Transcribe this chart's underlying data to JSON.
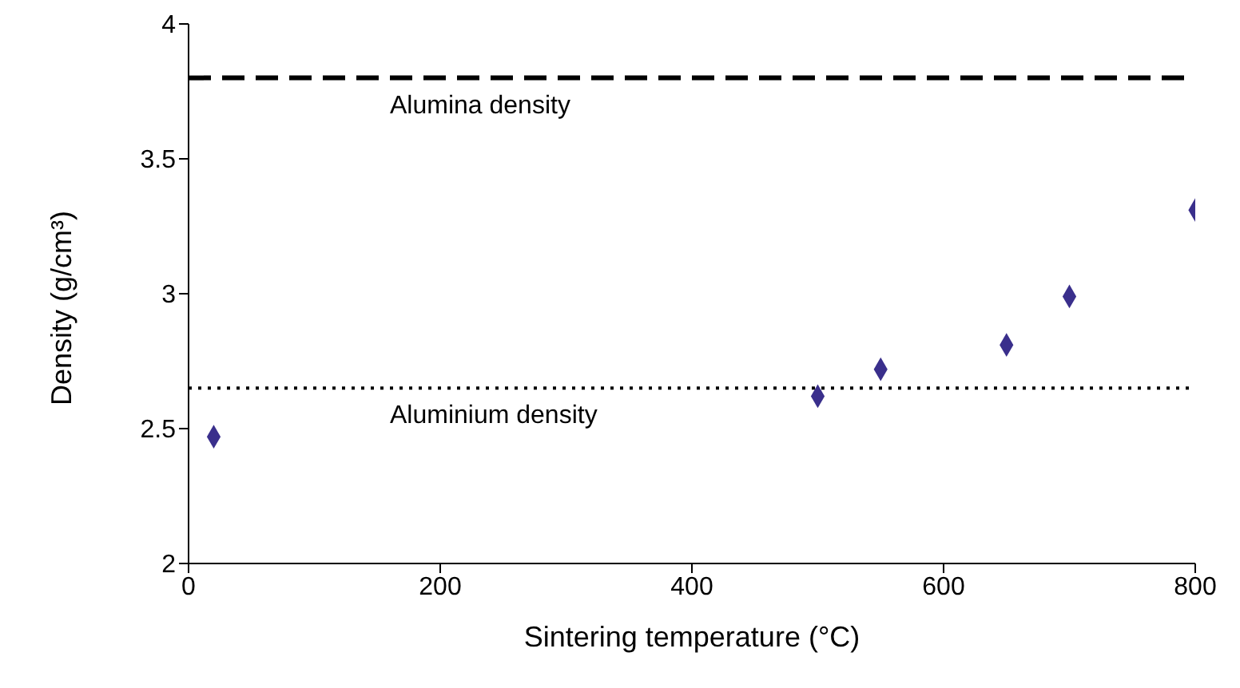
{
  "chart_data": {
    "type": "scatter",
    "xlabel": "Sintering temperature (°C)",
    "ylabel": "Density (g/cm³)",
    "x": [
      20,
      500,
      550,
      650,
      700,
      800
    ],
    "series": [
      {
        "color": "#3a2f8c",
        "values": [
          2.47,
          2.62,
          2.72,
          2.81,
          2.99,
          3.31
        ]
      }
    ],
    "marker": "diamond",
    "xlim": [
      0,
      800
    ],
    "xticks": [
      0,
      200,
      400,
      600,
      800
    ],
    "ylim": [
      2,
      4
    ],
    "yticks": [
      2,
      2.5,
      3,
      3.5,
      4
    ],
    "ref_lines": [
      {
        "axis": "y",
        "value": 3.8,
        "label": "Alumina density",
        "color": "#000000",
        "line_style": "dashed"
      },
      {
        "axis": "y",
        "value": 2.65,
        "label": "Aluminium density",
        "color": "#000000",
        "line_style": "dotted"
      }
    ],
    "grid": false,
    "legend": false
  }
}
